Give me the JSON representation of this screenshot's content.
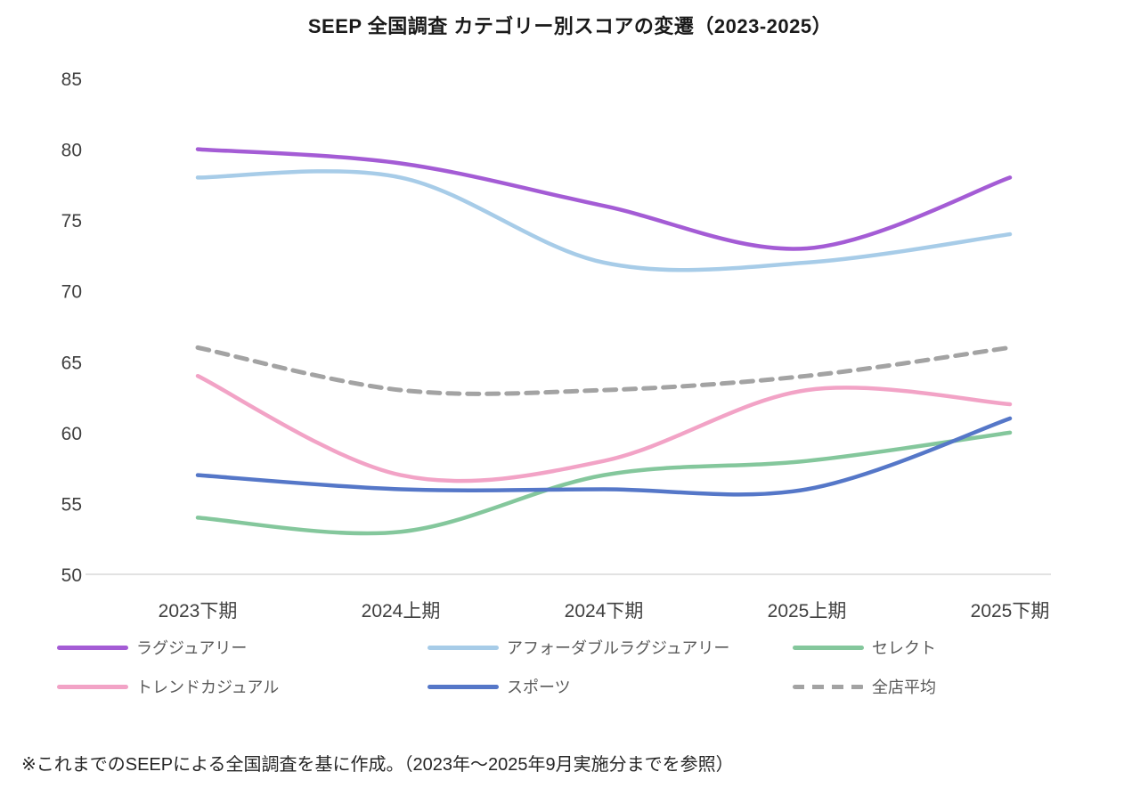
{
  "title": "SEEP 全国調査 カテゴリー別スコアの変遷（2023-2025）",
  "footnote": "※これまでのSEEPによる全国調査を基に作成。（2023年〜2025年9月実施分までを参照）",
  "chart_data": {
    "type": "line",
    "title": "SEEP 全国調査 カテゴリー別スコアの変遷（2023-2025）",
    "categories": [
      "2023下期",
      "2024上期",
      "2024下期",
      "2025上期",
      "2025下期"
    ],
    "series": [
      {
        "name": "ラグジュアリー",
        "color": "#A45CD5",
        "style": "solid",
        "values": [
          80,
          79,
          76,
          73,
          78
        ]
      },
      {
        "name": "アフォーダブルラグジュアリー",
        "color": "#A7CCE8",
        "style": "solid",
        "values": [
          78,
          78,
          72,
          72,
          74
        ]
      },
      {
        "name": "セレクト",
        "color": "#84C79C",
        "style": "solid",
        "values": [
          54,
          53,
          57,
          58,
          60
        ]
      },
      {
        "name": "トレンドカジュアル",
        "color": "#F2A3C6",
        "style": "solid",
        "values": [
          64,
          57,
          58,
          63,
          62
        ]
      },
      {
        "name": "スポーツ",
        "color": "#5577C8",
        "style": "solid",
        "values": [
          57,
          56,
          56,
          56,
          61
        ]
      },
      {
        "name": "全店平均",
        "color": "#A3A3A3",
        "style": "dashed",
        "values": [
          66,
          63,
          63,
          64,
          66
        ]
      }
    ],
    "ylim": [
      50,
      85
    ],
    "yticks": [
      50,
      55,
      60,
      65,
      70,
      75,
      80,
      85
    ],
    "grid": false,
    "legend_position": "bottom",
    "legend_rows": [
      [
        "ラグジュアリー",
        "アフォーダブルラグジュアリー",
        "セレクト"
      ],
      [
        "トレンドカジュアル",
        "スポーツ",
        "全店平均"
      ]
    ]
  },
  "colors": {
    "axis_text": "#404040",
    "legend_text": "#595959",
    "axis_line": "#D9D9D9",
    "title_text": "#1A1A1A",
    "footnote_text": "#262626"
  }
}
